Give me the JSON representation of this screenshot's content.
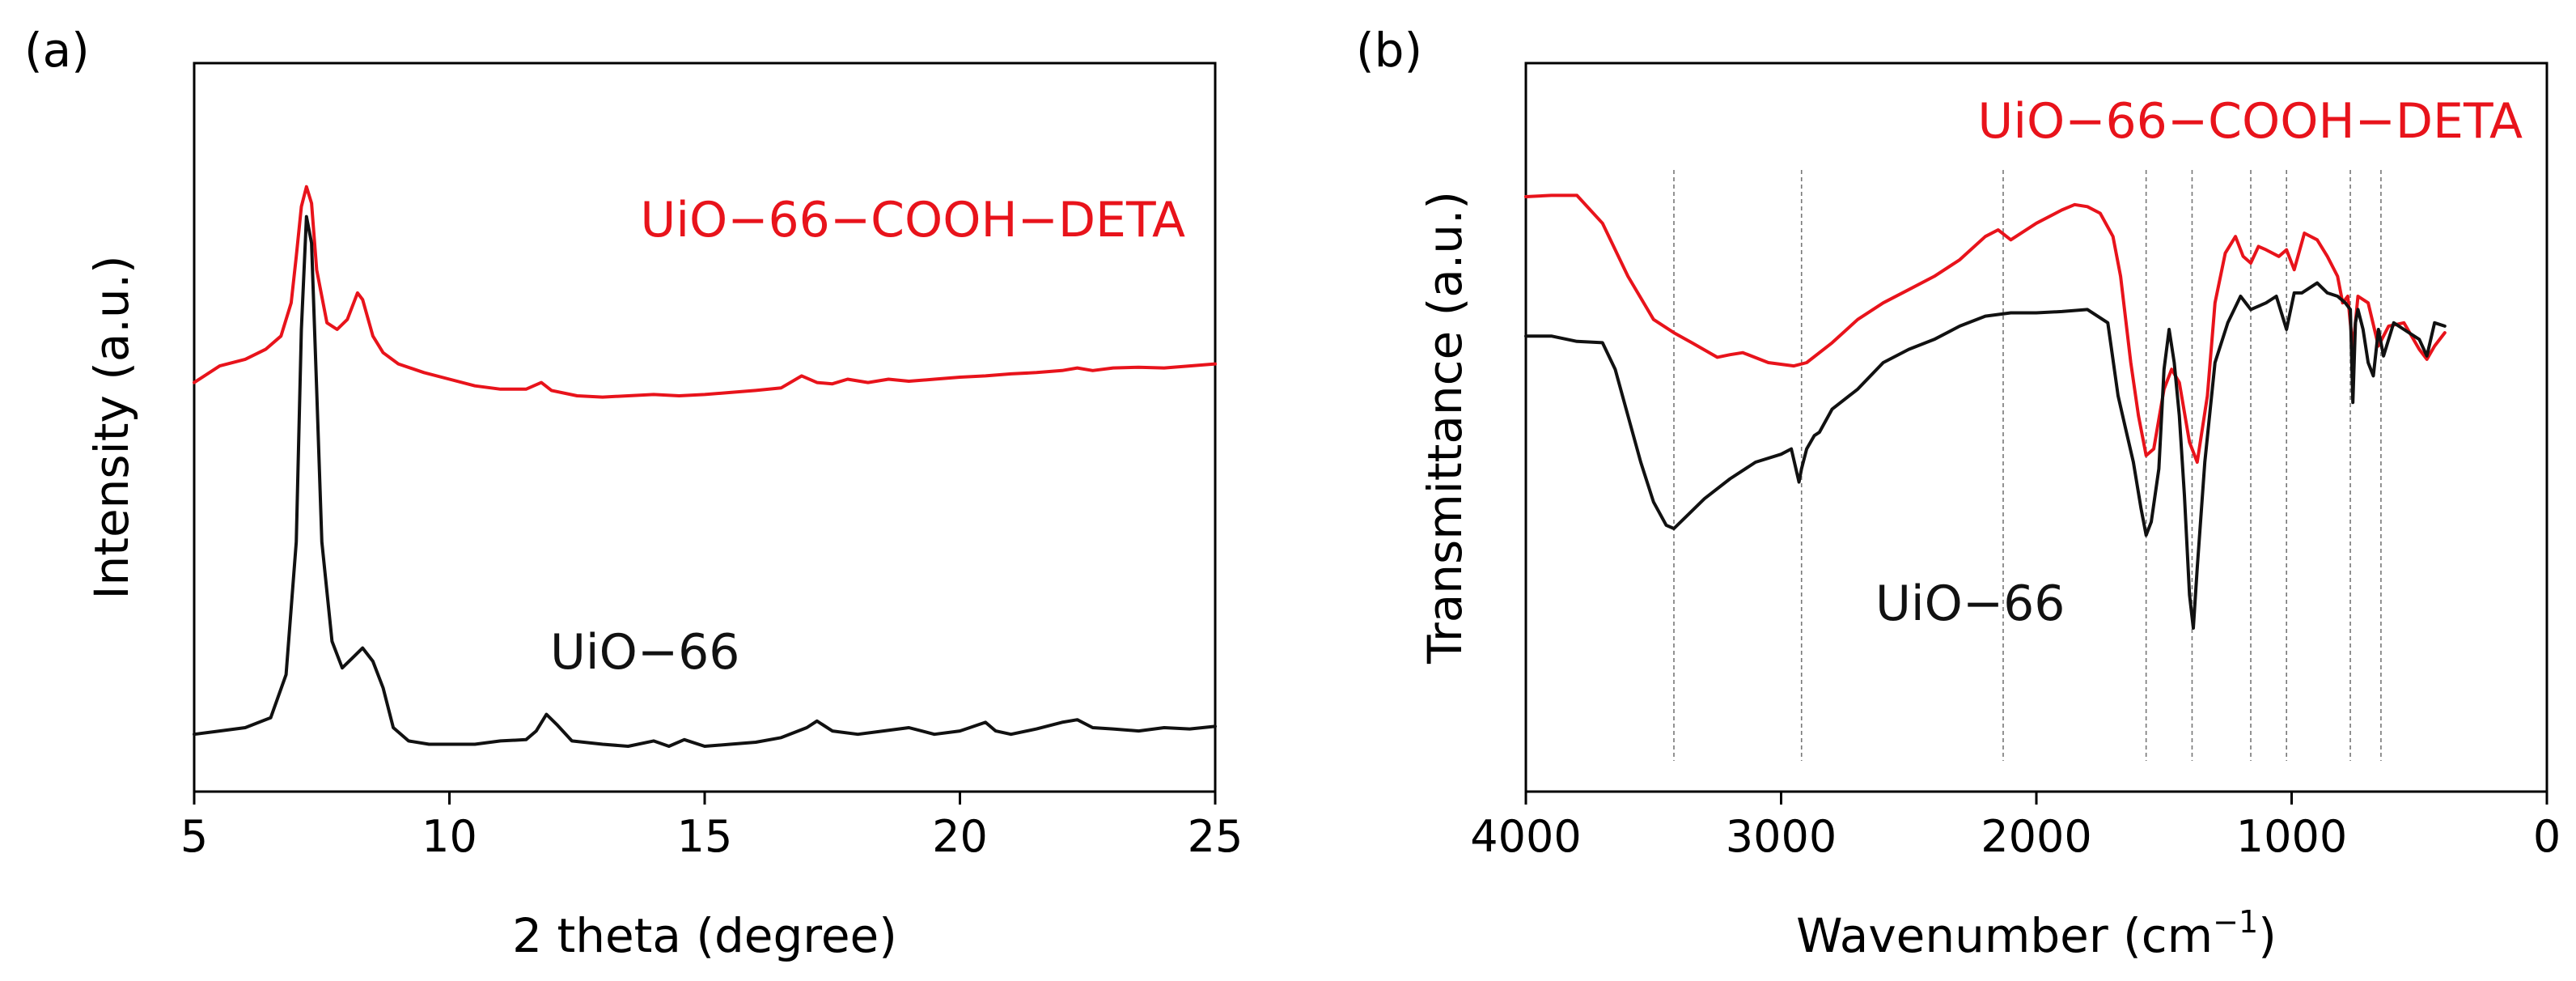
{
  "colors": {
    "sample_modified": "#e8131b",
    "sample_pristine": "#111111",
    "guide": "#777777"
  },
  "chart_data": [
    {
      "panel_label": "(a)",
      "type": "line",
      "title": "",
      "xlabel": "2 theta (degree)",
      "ylabel": "Intensity (a.u.)",
      "xlim": [
        5,
        25
      ],
      "ylim": [
        0,
        1
      ],
      "xticks": [
        5,
        10,
        15,
        20,
        25
      ],
      "xtick_labels": [
        "5",
        "10",
        "15",
        "20",
        "25"
      ],
      "yticks_shown": false,
      "grid": false,
      "series": [
        {
          "name": "UiO−66−COOH−DETA",
          "color": "#e8131b",
          "label_text": "UiO−66−COOH−DETA",
          "x": [
            5.0,
            5.5,
            6.0,
            6.4,
            6.7,
            6.9,
            7.0,
            7.1,
            7.2,
            7.3,
            7.4,
            7.6,
            7.8,
            8.0,
            8.2,
            8.3,
            8.5,
            8.7,
            9.0,
            9.5,
            10.0,
            10.5,
            11.0,
            11.5,
            11.8,
            12.0,
            12.5,
            13.0,
            13.5,
            14.0,
            14.5,
            15.0,
            15.5,
            16.0,
            16.5,
            16.9,
            17.2,
            17.5,
            17.8,
            18.2,
            18.6,
            19.0,
            19.5,
            20.0,
            20.5,
            21.0,
            21.5,
            22.0,
            22.3,
            22.6,
            23.0,
            23.5,
            24.0,
            24.5,
            25.0
          ],
          "y": [
            0.57,
            0.595,
            0.605,
            0.62,
            0.64,
            0.69,
            0.76,
            0.835,
            0.865,
            0.84,
            0.74,
            0.66,
            0.65,
            0.665,
            0.705,
            0.695,
            0.64,
            0.615,
            0.598,
            0.585,
            0.575,
            0.565,
            0.56,
            0.56,
            0.57,
            0.558,
            0.55,
            0.548,
            0.55,
            0.552,
            0.55,
            0.552,
            0.555,
            0.558,
            0.562,
            0.58,
            0.57,
            0.568,
            0.575,
            0.57,
            0.575,
            0.572,
            0.575,
            0.578,
            0.58,
            0.583,
            0.585,
            0.588,
            0.592,
            0.588,
            0.592,
            0.593,
            0.592,
            0.595,
            0.598
          ]
        },
        {
          "name": "UiO−66",
          "color": "#111111",
          "label_text": "UiO−66",
          "x": [
            5.0,
            5.5,
            6.0,
            6.5,
            6.8,
            7.0,
            7.1,
            7.2,
            7.3,
            7.4,
            7.5,
            7.7,
            7.9,
            8.1,
            8.3,
            8.5,
            8.7,
            8.9,
            9.2,
            9.6,
            10.0,
            10.5,
            11.0,
            11.5,
            11.7,
            11.9,
            12.1,
            12.4,
            13.0,
            13.5,
            14.0,
            14.3,
            14.6,
            15.0,
            15.5,
            16.0,
            16.5,
            17.0,
            17.2,
            17.5,
            18.0,
            18.5,
            19.0,
            19.5,
            20.0,
            20.5,
            20.7,
            21.0,
            21.5,
            22.0,
            22.3,
            22.6,
            23.0,
            23.5,
            24.0,
            24.5,
            25.0
          ],
          "y": [
            0.04,
            0.045,
            0.05,
            0.065,
            0.13,
            0.33,
            0.65,
            0.82,
            0.78,
            0.56,
            0.33,
            0.18,
            0.14,
            0.155,
            0.17,
            0.15,
            0.11,
            0.05,
            0.03,
            0.025,
            0.025,
            0.025,
            0.03,
            0.032,
            0.045,
            0.07,
            0.055,
            0.03,
            0.025,
            0.022,
            0.03,
            0.022,
            0.032,
            0.022,
            0.025,
            0.028,
            0.035,
            0.05,
            0.06,
            0.045,
            0.04,
            0.045,
            0.05,
            0.04,
            0.045,
            0.058,
            0.045,
            0.04,
            0.048,
            0.058,
            0.062,
            0.05,
            0.048,
            0.045,
            0.05,
            0.048,
            0.052
          ]
        }
      ]
    },
    {
      "panel_label": "(b)",
      "type": "line",
      "title": "",
      "xlabel": "Wavenumber (cm",
      "xlabel_superscript": "−1",
      "xlabel_suffix": ")",
      "ylabel": "Transmittance (a.u.)",
      "xlim": [
        4000,
        0
      ],
      "ylim": [
        0,
        1
      ],
      "xticks": [
        4000,
        3000,
        2000,
        1000,
        0
      ],
      "xtick_labels": [
        "4000",
        "3000",
        "2000",
        "1000",
        "0"
      ],
      "yticks_shown": false,
      "grid": false,
      "guide_lines": [
        3420,
        2920,
        2130,
        1570,
        1390,
        1160,
        1020,
        770,
        650
      ],
      "series": [
        {
          "name": "UiO−66−COOH−DETA",
          "color": "#e8131b",
          "label_text": "UiO−66−COOH−DETA",
          "x": [
            4000,
            3900,
            3800,
            3700,
            3600,
            3500,
            3420,
            3350,
            3250,
            3200,
            3150,
            3050,
            2950,
            2900,
            2800,
            2700,
            2600,
            2500,
            2400,
            2300,
            2200,
            2150,
            2100,
            2000,
            1900,
            1850,
            1800,
            1750,
            1700,
            1670,
            1630,
            1600,
            1570,
            1540,
            1500,
            1470,
            1440,
            1400,
            1370,
            1330,
            1300,
            1260,
            1220,
            1190,
            1160,
            1130,
            1100,
            1050,
            1020,
            990,
            950,
            900,
            860,
            820,
            800,
            780,
            760,
            740,
            700,
            660,
            620,
            560,
            500,
            470,
            440,
            400
          ],
          "y": [
            0.85,
            0.852,
            0.852,
            0.81,
            0.73,
            0.665,
            0.645,
            0.63,
            0.608,
            0.612,
            0.615,
            0.6,
            0.595,
            0.6,
            0.63,
            0.665,
            0.69,
            0.71,
            0.73,
            0.755,
            0.79,
            0.8,
            0.785,
            0.81,
            0.83,
            0.838,
            0.835,
            0.825,
            0.79,
            0.73,
            0.6,
            0.52,
            0.46,
            0.47,
            0.56,
            0.59,
            0.57,
            0.48,
            0.45,
            0.55,
            0.69,
            0.765,
            0.79,
            0.76,
            0.75,
            0.775,
            0.77,
            0.76,
            0.77,
            0.74,
            0.795,
            0.785,
            0.76,
            0.73,
            0.69,
            0.7,
            0.62,
            0.7,
            0.69,
            0.625,
            0.655,
            0.66,
            0.62,
            0.605,
            0.625,
            0.645
          ]
        },
        {
          "name": "UiO−66",
          "color": "#111111",
          "label_text": "UiO−66",
          "x": [
            4000,
            3900,
            3800,
            3700,
            3650,
            3600,
            3550,
            3500,
            3450,
            3420,
            3380,
            3300,
            3200,
            3100,
            3000,
            2960,
            2930,
            2920,
            2900,
            2870,
            2850,
            2800,
            2700,
            2600,
            2500,
            2400,
            2300,
            2200,
            2100,
            2000,
            1900,
            1800,
            1720,
            1680,
            1650,
            1620,
            1590,
            1570,
            1550,
            1520,
            1500,
            1480,
            1460,
            1440,
            1420,
            1400,
            1385,
            1370,
            1340,
            1300,
            1250,
            1200,
            1160,
            1100,
            1060,
            1020,
            990,
            960,
            900,
            860,
            820,
            790,
            770,
            760,
            750,
            740,
            720,
            700,
            680,
            660,
            640,
            600,
            560,
            500,
            470,
            440,
            400
          ],
          "y": [
            0.64,
            0.64,
            0.632,
            0.63,
            0.59,
            0.52,
            0.45,
            0.39,
            0.355,
            0.35,
            0.365,
            0.395,
            0.425,
            0.45,
            0.462,
            0.47,
            0.42,
            0.44,
            0.47,
            0.49,
            0.495,
            0.53,
            0.56,
            0.6,
            0.62,
            0.635,
            0.655,
            0.67,
            0.675,
            0.675,
            0.677,
            0.68,
            0.66,
            0.55,
            0.5,
            0.45,
            0.38,
            0.34,
            0.36,
            0.44,
            0.59,
            0.65,
            0.6,
            0.52,
            0.4,
            0.25,
            0.2,
            0.29,
            0.45,
            0.6,
            0.66,
            0.7,
            0.68,
            0.69,
            0.7,
            0.65,
            0.705,
            0.705,
            0.72,
            0.705,
            0.7,
            0.69,
            0.68,
            0.54,
            0.66,
            0.68,
            0.65,
            0.6,
            0.58,
            0.65,
            0.61,
            0.66,
            0.65,
            0.635,
            0.61,
            0.66,
            0.655
          ]
        }
      ]
    }
  ]
}
